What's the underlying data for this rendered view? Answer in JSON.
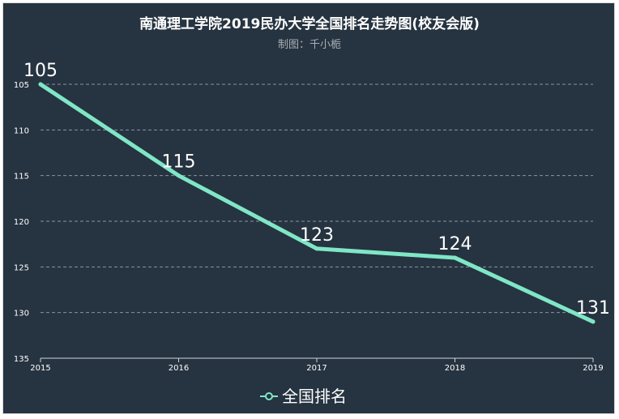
{
  "chart_data": {
    "type": "line",
    "title": "南通理工学院2019民办大学全国排名走势图(校友会版)",
    "subtitle": "制图：千小栀",
    "categories": [
      "2015",
      "2016",
      "2017",
      "2018",
      "2019"
    ],
    "series": [
      {
        "name": "全国排名",
        "values": [
          105,
          115,
          123,
          124,
          131
        ]
      }
    ],
    "y_ticks": [
      105,
      110,
      115,
      120,
      125,
      130,
      135
    ],
    "ylim": [
      105,
      135
    ],
    "y_inverted": true,
    "grid": true,
    "legend_position": "bottom-center",
    "line_color": "#7fe6c6"
  }
}
